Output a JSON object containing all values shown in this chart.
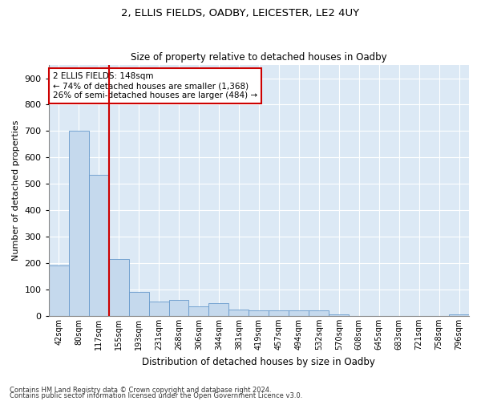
{
  "title": "2, ELLIS FIELDS, OADBY, LEICESTER, LE2 4UY",
  "subtitle": "Size of property relative to detached houses in Oadby",
  "xlabel": "Distribution of detached houses by size in Oadby",
  "ylabel": "Number of detached properties",
  "footnote1": "Contains HM Land Registry data © Crown copyright and database right 2024.",
  "footnote2": "Contains public sector information licensed under the Open Government Licence v3.0.",
  "bar_color": "#c5d9ed",
  "bar_edge_color": "#6699cc",
  "bg_color": "#dce9f5",
  "vline_color": "#cc0000",
  "vline_x": 2.5,
  "annotation_text": "2 ELLIS FIELDS: 148sqm\n← 74% of detached houses are smaller (1,368)\n26% of semi-detached houses are larger (484) →",
  "annotation_box_color": "#ffffff",
  "annotation_box_edge": "#cc0000",
  "categories": [
    "42sqm",
    "80sqm",
    "117sqm",
    "155sqm",
    "193sqm",
    "231sqm",
    "268sqm",
    "306sqm",
    "344sqm",
    "381sqm",
    "419sqm",
    "457sqm",
    "494sqm",
    "532sqm",
    "570sqm",
    "608sqm",
    "645sqm",
    "683sqm",
    "721sqm",
    "758sqm",
    "796sqm"
  ],
  "values": [
    190,
    700,
    535,
    215,
    90,
    55,
    60,
    35,
    50,
    25,
    20,
    20,
    20,
    20,
    5,
    0,
    0,
    0,
    0,
    0,
    5
  ],
  "ylim": [
    0,
    950
  ],
  "yticks": [
    0,
    100,
    200,
    300,
    400,
    500,
    600,
    700,
    800,
    900
  ]
}
